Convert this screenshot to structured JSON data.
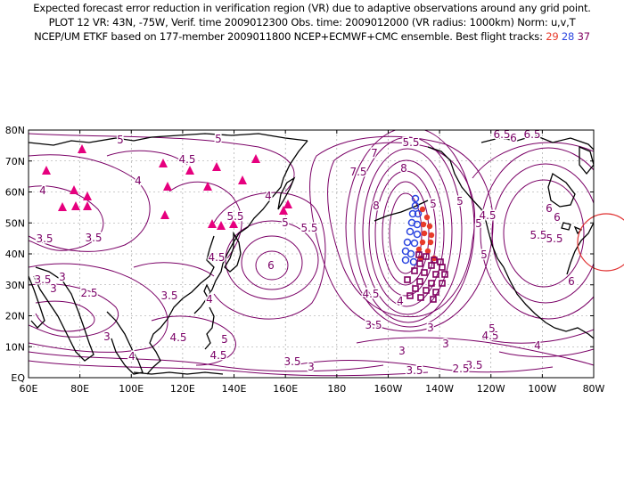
{
  "header": {
    "line1": "Expected forecast error reduction in verification region (VR) due to adaptive observations around any grid point.",
    "line2": "PLOT 12 VR: 43N, -75W, Verif. time 2009012300 Obs. time: 2009012000 (VR radius: 1000km) Norm: u,v,T",
    "line3": "NCEP/UM ETKF based on 177-member 2009011800 NCEP+ECMWF+CMC ensemble. Best flight tracks:",
    "track_ids": [
      "29",
      "28",
      "37"
    ]
  },
  "map": {
    "lon_labels": [
      "60E",
      "80E",
      "100E",
      "120E",
      "140E",
      "160E",
      "180",
      "160W",
      "140W",
      "120W",
      "100W",
      "80W"
    ],
    "lat_labels": [
      "EQ",
      "10N",
      "20N",
      "30N",
      "40N",
      "50N",
      "60N",
      "70N",
      "80N"
    ],
    "contour_labels": [
      "5",
      "4.5",
      "5",
      "4",
      "4",
      "3.5",
      "3",
      "2.5",
      "3.5",
      "4",
      "4.5",
      "5",
      "5.5",
      "6",
      "7",
      "7.5",
      "8",
      "8",
      "5.5",
      "6",
      "6.5",
      "6.5",
      "5",
      "5",
      "5",
      "5",
      "5.5",
      "6",
      "6",
      "3.5",
      "3",
      "3.5",
      "3",
      "4.5",
      "4",
      "4.5",
      "5",
      "5.5",
      "4",
      "4.5",
      "4",
      "3.5",
      "3",
      "3.5",
      "3.5",
      "3",
      "3.5",
      "4.5",
      "4",
      "5",
      "6",
      "4.5",
      "5.5",
      "3",
      "3",
      "2.5"
    ],
    "colors": {
      "contour": "#7a0066",
      "triangle": "#e6007e",
      "track_29": "#e83a2a",
      "track_28": "#2b45e0",
      "track_37": "#800060",
      "vr_circle": "#e03030"
    }
  }
}
